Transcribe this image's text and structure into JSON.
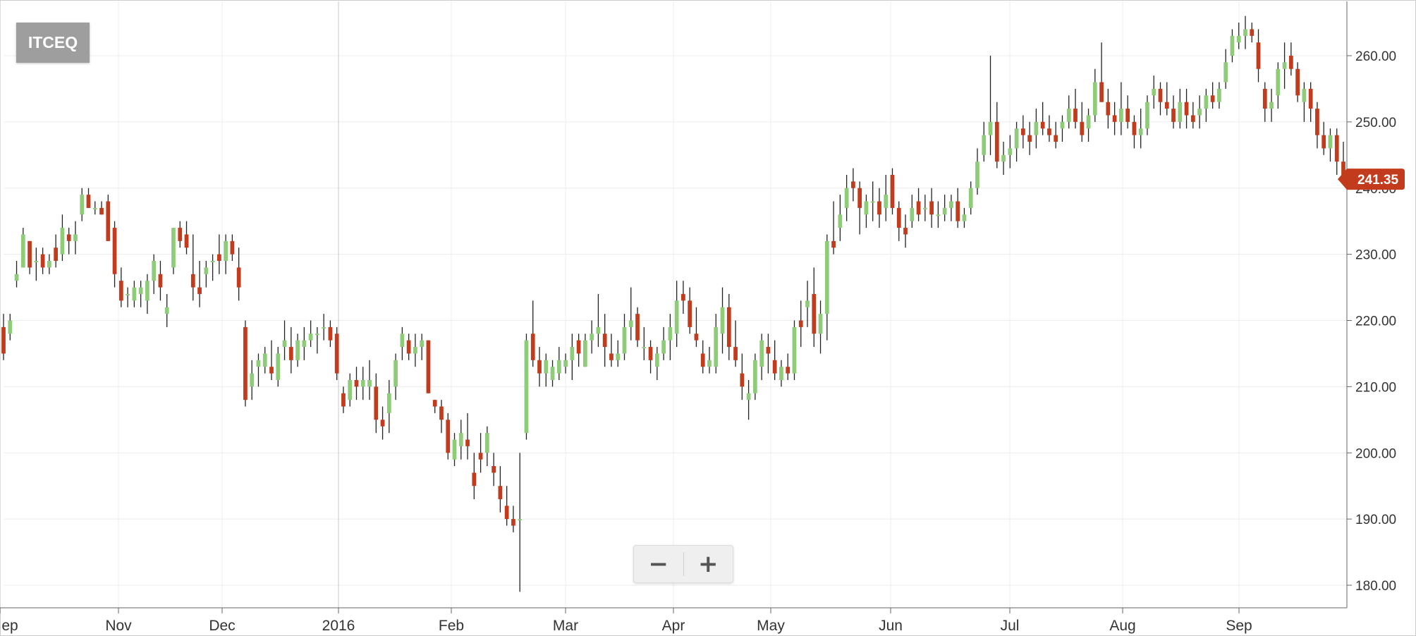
{
  "symbol": "ITCEQ",
  "zoom": {
    "minus": "−",
    "plus": "+"
  },
  "last_price_label": "241.35",
  "colors": {
    "up": "#8fcc7a",
    "down": "#c23b1c",
    "wick": "#222222",
    "grid": "#ececec",
    "badge": "#9e9e9e"
  },
  "chart_data": {
    "type": "candlestick",
    "ylim": [
      177,
      266
    ],
    "y_ticks": [
      "180.00",
      "190.00",
      "200.00",
      "210.00",
      "220.00",
      "230.00",
      "240.00",
      "250.00",
      "260.00"
    ],
    "x_labels": [
      "ep",
      "Nov",
      "Dec",
      "2016",
      "Feb",
      "Mar",
      "Apr",
      "May",
      "Jun",
      "Jul",
      "Aug",
      "Sep"
    ],
    "last_price": 241.35,
    "candles": [
      [
        219,
        221,
        214,
        215
      ],
      [
        218,
        221,
        217,
        220
      ],
      [
        226,
        229,
        225,
        227
      ],
      [
        228,
        234,
        228,
        233
      ],
      [
        232,
        232,
        227,
        228
      ],
      [
        229,
        231,
        226,
        229
      ],
      [
        230,
        231,
        227,
        228
      ],
      [
        228,
        230,
        227,
        229
      ],
      [
        231,
        233,
        228,
        229
      ],
      [
        230,
        236,
        229,
        234
      ],
      [
        233,
        234,
        230,
        232
      ],
      [
        232,
        235,
        230,
        233
      ],
      [
        236,
        240,
        235,
        239
      ],
      [
        239,
        240,
        237,
        237
      ],
      [
        237,
        238,
        236,
        237
      ],
      [
        237,
        238,
        236,
        236
      ],
      [
        238,
        239,
        232,
        232
      ],
      [
        234,
        235,
        225,
        227
      ],
      [
        226,
        228,
        222,
        223
      ],
      [
        224,
        225,
        222,
        224
      ],
      [
        223,
        226,
        222,
        225
      ],
      [
        224,
        226,
        222,
        225
      ],
      [
        223,
        227,
        221,
        226
      ],
      [
        226,
        230,
        224,
        229
      ],
      [
        227,
        229,
        223,
        225
      ],
      [
        221,
        224,
        219,
        222
      ],
      [
        228,
        234,
        227,
        234
      ],
      [
        234,
        235,
        231,
        232
      ],
      [
        233,
        235,
        230,
        231
      ],
      [
        227,
        233,
        223,
        225
      ],
      [
        225,
        229,
        222,
        224
      ],
      [
        227,
        229,
        225,
        228
      ],
      [
        229,
        230,
        226,
        229
      ],
      [
        230,
        233,
        227,
        229
      ],
      [
        229,
        233,
        227,
        232
      ],
      [
        232,
        233,
        229,
        230
      ],
      [
        228,
        231,
        223,
        225
      ],
      [
        219,
        220,
        207,
        208
      ],
      [
        210,
        214,
        208,
        212
      ],
      [
        213,
        215,
        210,
        214
      ],
      [
        213,
        216,
        212,
        215
      ],
      [
        213,
        217,
        211,
        212
      ],
      [
        211,
        216,
        210,
        215
      ],
      [
        216,
        220,
        214,
        217
      ],
      [
        216,
        219,
        212,
        214
      ],
      [
        214,
        218,
        213,
        217
      ],
      [
        216,
        219,
        214,
        217
      ],
      [
        217,
        220,
        216,
        218
      ],
      [
        218,
        219,
        215,
        218
      ],
      [
        219,
        221,
        217,
        219
      ],
      [
        219,
        220,
        216,
        217
      ],
      [
        218,
        219,
        211,
        212
      ],
      [
        209,
        210,
        206,
        207
      ],
      [
        208,
        212,
        207,
        211
      ],
      [
        211,
        213,
        208,
        210
      ],
      [
        210,
        213,
        208,
        211
      ],
      [
        210,
        214,
        208,
        211
      ],
      [
        210,
        212,
        203,
        205
      ],
      [
        205,
        207,
        202,
        204
      ],
      [
        206,
        211,
        203,
        209
      ],
      [
        210,
        215,
        208,
        214
      ],
      [
        216,
        219,
        214,
        218
      ],
      [
        217,
        218,
        214,
        215
      ],
      [
        215,
        218,
        213,
        216
      ],
      [
        216,
        218,
        214,
        217
      ],
      [
        217,
        217,
        209,
        209
      ],
      [
        208,
        208,
        206,
        207
      ],
      [
        207,
        208,
        203,
        205
      ],
      [
        205,
        206,
        199,
        200
      ],
      [
        199,
        203,
        198,
        202
      ],
      [
        201,
        205,
        199,
        203
      ],
      [
        202,
        206,
        199,
        201
      ],
      [
        197,
        200,
        193,
        195
      ],
      [
        200,
        203,
        197,
        199
      ],
      [
        200,
        204,
        198,
        203
      ],
      [
        198,
        200,
        195,
        197
      ],
      [
        195,
        198,
        191,
        193
      ],
      [
        192,
        195,
        189,
        190
      ],
      [
        190,
        192,
        188,
        189
      ],
      [
        190,
        200,
        179,
        190
      ],
      [
        203,
        218,
        202,
        217
      ],
      [
        218,
        223,
        213,
        214
      ],
      [
        214,
        216,
        210,
        212
      ],
      [
        212,
        215,
        210,
        214
      ],
      [
        211,
        214,
        210,
        213
      ],
      [
        212,
        216,
        211,
        214
      ],
      [
        213,
        215,
        212,
        214
      ],
      [
        214,
        218,
        211,
        216
      ],
      [
        217,
        218,
        213,
        215
      ],
      [
        213,
        218,
        213,
        217
      ],
      [
        217,
        220,
        215,
        218
      ],
      [
        218,
        224,
        216,
        219
      ],
      [
        218,
        221,
        213,
        216
      ],
      [
        215,
        218,
        213,
        214
      ],
      [
        214,
        217,
        213,
        215
      ],
      [
        215,
        221,
        214,
        219
      ],
      [
        219,
        225,
        217,
        220
      ],
      [
        221,
        222,
        216,
        217
      ],
      [
        216,
        219,
        214,
        216
      ],
      [
        216,
        217,
        212,
        214
      ],
      [
        213,
        216,
        211,
        215
      ],
      [
        215,
        219,
        214,
        217
      ],
      [
        217,
        221,
        214,
        219
      ],
      [
        218,
        226,
        216,
        223
      ],
      [
        224,
        226,
        221,
        223
      ],
      [
        223,
        225,
        218,
        219
      ],
      [
        218,
        222,
        216,
        217
      ],
      [
        215,
        217,
        212,
        213
      ],
      [
        213,
        216,
        212,
        214
      ],
      [
        213,
        221,
        212,
        219
      ],
      [
        218,
        225,
        215,
        222
      ],
      [
        222,
        224,
        214,
        216
      ],
      [
        216,
        220,
        213,
        214
      ],
      [
        212,
        215,
        208,
        210
      ],
      [
        208,
        211,
        205,
        209
      ],
      [
        209,
        215,
        208,
        214
      ],
      [
        213,
        218,
        211,
        217
      ],
      [
        216,
        218,
        212,
        215
      ],
      [
        214,
        217,
        211,
        212
      ],
      [
        211,
        214,
        210,
        213
      ],
      [
        213,
        215,
        211,
        212
      ],
      [
        212,
        220,
        211,
        219
      ],
      [
        220,
        223,
        216,
        219
      ],
      [
        222,
        226,
        219,
        223
      ],
      [
        224,
        228,
        216,
        218
      ],
      [
        218,
        223,
        215,
        221
      ],
      [
        221,
        233,
        217,
        232
      ],
      [
        232,
        238,
        230,
        231
      ],
      [
        234,
        239,
        232,
        236
      ],
      [
        237,
        242,
        235,
        240
      ],
      [
        241,
        243,
        238,
        240
      ],
      [
        240,
        241,
        233,
        237
      ],
      [
        236,
        239,
        234,
        238
      ],
      [
        238,
        241,
        235,
        238
      ],
      [
        238,
        240,
        234,
        236
      ],
      [
        237,
        242,
        235,
        239
      ],
      [
        242,
        243,
        236,
        237
      ],
      [
        237,
        238,
        232,
        234
      ],
      [
        234,
        236,
        231,
        233
      ],
      [
        235,
        239,
        234,
        237
      ],
      [
        238,
        240,
        235,
        236
      ],
      [
        237,
        239,
        235,
        237
      ],
      [
        238,
        240,
        234,
        236
      ],
      [
        236,
        238,
        234,
        236
      ],
      [
        236,
        239,
        235,
        237
      ],
      [
        237,
        239,
        235,
        238
      ],
      [
        238,
        240,
        234,
        235
      ],
      [
        235,
        237,
        234,
        236
      ],
      [
        237,
        241,
        236,
        240
      ],
      [
        240,
        246,
        239,
        244
      ],
      [
        245,
        250,
        244,
        248
      ],
      [
        248,
        260,
        245,
        250
      ],
      [
        250,
        253,
        243,
        244
      ],
      [
        244,
        247,
        242,
        245
      ],
      [
        245,
        248,
        243,
        246
      ],
      [
        246,
        250,
        244,
        249
      ],
      [
        249,
        251,
        246,
        248
      ],
      [
        248,
        250,
        245,
        247
      ],
      [
        248,
        252,
        246,
        250
      ],
      [
        250,
        253,
        248,
        249
      ],
      [
        249,
        251,
        247,
        248
      ],
      [
        248,
        250,
        246,
        247
      ],
      [
        249,
        251,
        247,
        250
      ],
      [
        250,
        254,
        249,
        252
      ],
      [
        252,
        255,
        249,
        250
      ],
      [
        250,
        253,
        247,
        248
      ],
      [
        249,
        252,
        247,
        251
      ],
      [
        251,
        258,
        250,
        256
      ],
      [
        256,
        262,
        253,
        253
      ],
      [
        253,
        255,
        249,
        251
      ],
      [
        251,
        253,
        248,
        250
      ],
      [
        250,
        256,
        248,
        252
      ],
      [
        252,
        254,
        249,
        250
      ],
      [
        250,
        251,
        246,
        248
      ],
      [
        248,
        252,
        246,
        249
      ],
      [
        249,
        254,
        248,
        253
      ],
      [
        254,
        257,
        252,
        255
      ],
      [
        255,
        256,
        251,
        253
      ],
      [
        253,
        256,
        251,
        252
      ],
      [
        252,
        254,
        249,
        250
      ],
      [
        250,
        255,
        249,
        253
      ],
      [
        253,
        255,
        249,
        251
      ],
      [
        251,
        253,
        249,
        250
      ],
      [
        251,
        254,
        249,
        252
      ],
      [
        252,
        255,
        250,
        254
      ],
      [
        254,
        256,
        252,
        253
      ],
      [
        253,
        256,
        252,
        255
      ],
      [
        256,
        261,
        255,
        259
      ],
      [
        260,
        264,
        259,
        263
      ],
      [
        262,
        265,
        261,
        263
      ],
      [
        263,
        266,
        261,
        264
      ],
      [
        264,
        265,
        262,
        263
      ],
      [
        262,
        264,
        256,
        258
      ],
      [
        255,
        256,
        250,
        252
      ],
      [
        252,
        255,
        250,
        253
      ],
      [
        254,
        259,
        252,
        258
      ],
      [
        258,
        262,
        255,
        259
      ],
      [
        260,
        262,
        257,
        258
      ],
      [
        258,
        259,
        253,
        254
      ],
      [
        253,
        256,
        250,
        255
      ],
      [
        255,
        256,
        250,
        252
      ],
      [
        252,
        253,
        246,
        248
      ],
      [
        248,
        250,
        245,
        246
      ],
      [
        246,
        249,
        244,
        248
      ],
      [
        248,
        249,
        242,
        244
      ],
      [
        244,
        247,
        241,
        241
      ]
    ]
  }
}
